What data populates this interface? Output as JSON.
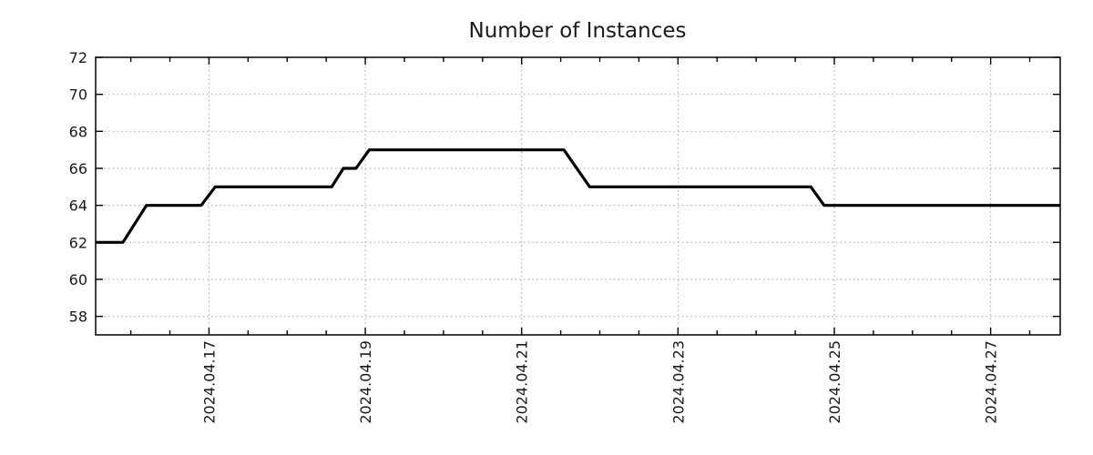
{
  "title": {
    "text": "Number of Instances"
  },
  "colors": {
    "line": "#000000",
    "grid": "#b0b0b0",
    "axis": "#000000",
    "text": "#1a1a1a",
    "background": "#ffffff"
  },
  "chart_data": {
    "type": "line",
    "title": "Number of Instances",
    "xlabel": "",
    "ylabel": "",
    "grid": {
      "shown": true,
      "style": "dotted",
      "color": "#b0b0b0"
    },
    "legend": {
      "shown": false
    },
    "x_axis": {
      "unit": "date",
      "domain_note": "x values are days since 2024-04-15 00:00",
      "xlim": [
        0.55,
        12.89
      ],
      "minor_tick_step": 0.5,
      "major_ticks": [
        {
          "x": 2,
          "label": "2024.04.17"
        },
        {
          "x": 4,
          "label": "2024.04.19"
        },
        {
          "x": 6,
          "label": "2024.04.21"
        },
        {
          "x": 8,
          "label": "2024.04.23"
        },
        {
          "x": 10,
          "label": "2024.04.25"
        },
        {
          "x": 12,
          "label": "2024.04.27"
        }
      ]
    },
    "y_axis": {
      "ylim": [
        57,
        72
      ],
      "ticks": [
        58,
        60,
        62,
        64,
        66,
        68,
        70,
        72
      ]
    },
    "series": [
      {
        "name": "instances",
        "color": "#000000",
        "points": [
          [
            0.55,
            62
          ],
          [
            0.9,
            62
          ],
          [
            1.2,
            64
          ],
          [
            1.9,
            64
          ],
          [
            2.08,
            65
          ],
          [
            3.57,
            65
          ],
          [
            3.72,
            66
          ],
          [
            3.88,
            66
          ],
          [
            4.05,
            67
          ],
          [
            6.54,
            67
          ],
          [
            6.87,
            65
          ],
          [
            9.7,
            65
          ],
          [
            9.87,
            64
          ],
          [
            12.89,
            64
          ]
        ]
      }
    ]
  }
}
